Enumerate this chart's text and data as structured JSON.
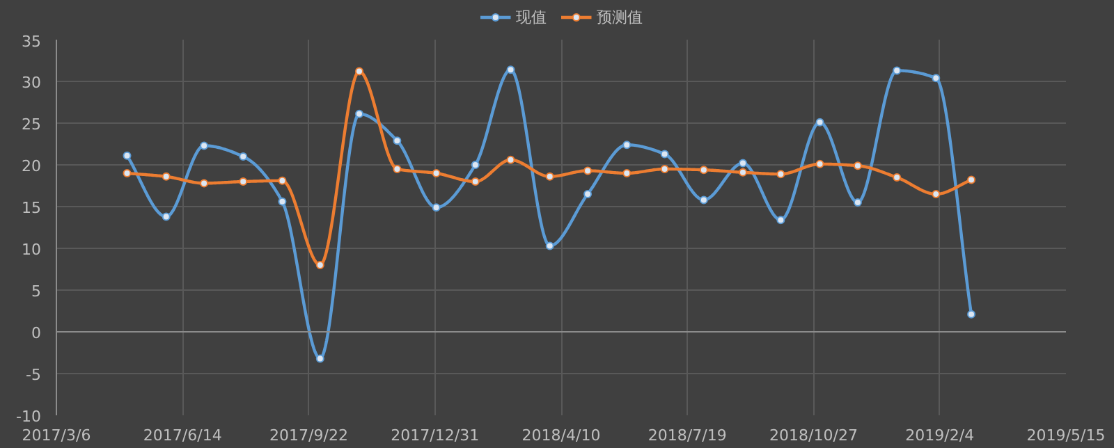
{
  "chart_data": {
    "type": "line",
    "x": [
      "2017-05-01",
      "2017-06-01",
      "2017-07-01",
      "2017-08-01",
      "2017-09-01",
      "2017-10-01",
      "2017-11-01",
      "2017-12-01",
      "2018-01-01",
      "2018-02-01",
      "2018-03-01",
      "2018-04-01",
      "2018-05-01",
      "2018-06-01",
      "2018-07-01",
      "2018-08-01",
      "2018-09-01",
      "2018-10-01",
      "2018-11-01",
      "2018-12-01",
      "2019-01-01",
      "2019-02-01",
      "2019-03-01"
    ],
    "series": [
      {
        "name": "现值",
        "color": "#5b9bd5",
        "values": [
          21.1,
          13.8,
          22.3,
          21.0,
          15.6,
          -3.2,
          26.1,
          22.9,
          14.9,
          20.0,
          31.4,
          10.3,
          16.5,
          22.4,
          21.3,
          15.8,
          20.2,
          13.4,
          25.1,
          15.5,
          31.3,
          30.4,
          2.1
        ]
      },
      {
        "name": "预测值",
        "color": "#ed7d31",
        "values": [
          19.0,
          18.6,
          17.8,
          18.0,
          18.1,
          8.0,
          31.2,
          19.5,
          19.0,
          18.0,
          20.6,
          18.6,
          19.3,
          19.0,
          19.5,
          19.4,
          19.1,
          18.9,
          20.1,
          19.9,
          18.5,
          16.5,
          18.2
        ]
      }
    ],
    "xlim": [
      "2017-03-06",
      "2019-05-15"
    ],
    "xticks": [
      {
        "value": "2017-03-06",
        "label": "2017/3/6"
      },
      {
        "value": "2017-06-14",
        "label": "2017/6/14"
      },
      {
        "value": "2017-09-22",
        "label": "2017/9/22"
      },
      {
        "value": "2017-12-31",
        "label": "2017/12/31"
      },
      {
        "value": "2018-04-10",
        "label": "2018/4/10"
      },
      {
        "value": "2018-07-19",
        "label": "2018/7/19"
      },
      {
        "value": "2018-10-27",
        "label": "2018/10/27"
      },
      {
        "value": "2019-02-04",
        "label": "2019/2/4"
      },
      {
        "value": "2019-05-15",
        "label": "2019/5/15"
      }
    ],
    "ylim": [
      -10,
      35
    ],
    "yticks": [
      -10,
      -5,
      0,
      5,
      10,
      15,
      20,
      25,
      30,
      35
    ],
    "grid": true,
    "legend": "top",
    "marker": "circle",
    "line_style": "solid"
  }
}
